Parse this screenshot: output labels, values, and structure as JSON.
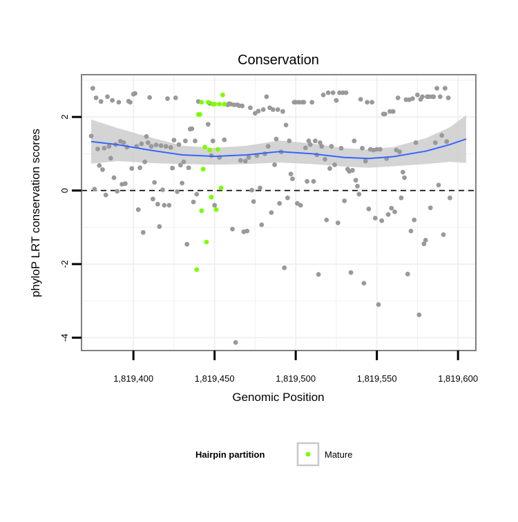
{
  "chart_data": {
    "type": "scatter",
    "title": "Conservation",
    "xlabel": "Genomic Position",
    "ylabel": "phyloP LRT conservation scores",
    "xlim": [
      1819368,
      1819611
    ],
    "ylim": [
      -4.35,
      3.15
    ],
    "x_ticks": [
      1819400,
      1819450,
      1819500,
      1819550,
      1819600
    ],
    "x_tick_labels": [
      "1,819,400",
      "1,819,450",
      "1,819,500",
      "1,819,550",
      "1,819,600"
    ],
    "y_ticks": [
      -4,
      -2,
      0,
      2
    ],
    "y_tick_labels": [
      "-4",
      "-2",
      "0",
      "2"
    ],
    "reference_line_y": 0,
    "grid": true,
    "legend": {
      "title": "Hairpin partition",
      "position": "bottom",
      "entries": [
        {
          "label": "Mature",
          "color": "#7cfc00"
        }
      ]
    },
    "series": [
      {
        "color": "#999999",
        "points": [
          [
            1819374,
            1.48
          ],
          [
            1819375,
            2.78
          ],
          [
            1819376,
            0.04
          ],
          [
            1819377,
            2.52
          ],
          [
            1819378,
            1.13
          ],
          [
            1819379,
            0.68
          ],
          [
            1819380,
            2.42
          ],
          [
            1819381,
            0.57
          ],
          [
            1819382,
            1.15
          ],
          [
            1819383,
            -0.12
          ],
          [
            1819384,
            2.55
          ],
          [
            1819385,
            1.2
          ],
          [
            1819386,
            0.88
          ],
          [
            1819387,
            2.45
          ],
          [
            1819388,
            0.35
          ],
          [
            1819389,
            1.25
          ],
          [
            1819390,
            -0.02
          ],
          [
            1819391,
            2.4
          ],
          [
            1819392,
            1.34
          ],
          [
            1819393,
            0.17
          ],
          [
            1819394,
            1.3
          ],
          [
            1819395,
            0.19
          ],
          [
            1819396,
            1.18
          ],
          [
            1819397,
            2.43
          ],
          [
            1819398,
            2.4
          ],
          [
            1819399,
            0.6
          ],
          [
            1819400,
            2.62
          ],
          [
            1819401,
            2.64
          ],
          [
            1819402,
            1.2
          ],
          [
            1819403,
            -0.52
          ],
          [
            1819404,
            0.62
          ],
          [
            1819405,
            1.27
          ],
          [
            1819406,
            -1.14
          ],
          [
            1819407,
            0.78
          ],
          [
            1819408,
            1.47
          ],
          [
            1819409,
            1.3
          ],
          [
            1819410,
            2.53
          ],
          [
            1819411,
            1.2
          ],
          [
            1819412,
            -0.23
          ],
          [
            1819413,
            0.22
          ],
          [
            1819414,
            1.24
          ],
          [
            1819415,
            -0.37
          ],
          [
            1819416,
            -0.98
          ],
          [
            1819417,
            1.22
          ],
          [
            1819418,
            0.02
          ],
          [
            1819419,
            -0.4
          ],
          [
            1819420,
            1.2
          ],
          [
            1819421,
            2.5
          ],
          [
            1819422,
            -0.4
          ],
          [
            1819423,
            1.17
          ],
          [
            1819424,
            0.61
          ],
          [
            1819425,
            1.37
          ],
          [
            1819426,
            2.52
          ],
          [
            1819427,
            -0.03
          ],
          [
            1819428,
            1.25
          ],
          [
            1819429,
            0.69
          ],
          [
            1819430,
            0.2
          ],
          [
            1819431,
            0.78
          ],
          [
            1819432,
            1.35
          ],
          [
            1819433,
            -1.46
          ],
          [
            1819434,
            0.62
          ],
          [
            1819435,
            1.67
          ],
          [
            1819436,
            1.68
          ],
          [
            1819437,
            -0.31
          ],
          [
            1819438,
            1.35
          ],
          [
            1819439,
            -0.1
          ],
          [
            1819440,
            2.42
          ],
          [
            1819446,
            1.8
          ],
          [
            1819447,
            2.37
          ],
          [
            1819448,
            0.95
          ],
          [
            1819449,
            1.35
          ],
          [
            1819450,
            -0.4
          ],
          [
            1819453,
            0.9
          ],
          [
            1819456,
            1.38
          ],
          [
            1819458,
            2.33
          ],
          [
            1819459,
            2.36
          ],
          [
            1819460,
            2.35
          ],
          [
            1819461,
            -1.05
          ],
          [
            1819462,
            2.33
          ],
          [
            1819463,
            -4.13
          ],
          [
            1819464,
            2.33
          ],
          [
            1819465,
            2.31
          ],
          [
            1819466,
            0.82
          ],
          [
            1819467,
            2.3
          ],
          [
            1819468,
            -1.12
          ],
          [
            1819469,
            0.8
          ],
          [
            1819470,
            -1.1
          ],
          [
            1819471,
            0.9
          ],
          [
            1819472,
            2.25
          ],
          [
            1819473,
            0.01
          ],
          [
            1819474,
            -0.3
          ],
          [
            1819475,
            2.1
          ],
          [
            1819476,
            0.95
          ],
          [
            1819477,
            2.16
          ],
          [
            1819478,
            0.07
          ],
          [
            1819479,
            -0.93
          ],
          [
            1819480,
            2.2
          ],
          [
            1819481,
            1.0
          ],
          [
            1819482,
            2.55
          ],
          [
            1819483,
            1.2
          ],
          [
            1819484,
            2.25
          ],
          [
            1819485,
            -0.6
          ],
          [
            1819486,
            2.2
          ],
          [
            1819487,
            0.7
          ],
          [
            1819488,
            1.4
          ],
          [
            1819489,
            2.2
          ],
          [
            1819490,
            -0.35
          ],
          [
            1819491,
            1.05
          ],
          [
            1819492,
            2.15
          ],
          [
            1819493,
            -2.1
          ],
          [
            1819494,
            1.78
          ],
          [
            1819495,
            -0.2
          ],
          [
            1819496,
            1.35
          ],
          [
            1819497,
            0.45
          ],
          [
            1819498,
            0.32
          ],
          [
            1819499,
            2.4
          ],
          [
            1819500,
            2.4
          ],
          [
            1819501,
            -0.35
          ],
          [
            1819502,
            2.4
          ],
          [
            1819503,
            -0.4
          ],
          [
            1819504,
            2.4
          ],
          [
            1819505,
            2.4
          ],
          [
            1819506,
            1.16
          ],
          [
            1819507,
            0.25
          ],
          [
            1819508,
            1.35
          ],
          [
            1819509,
            1.25
          ],
          [
            1819510,
            2.4
          ],
          [
            1819511,
            0.25
          ],
          [
            1819512,
            1.35
          ],
          [
            1819513,
            0.97
          ],
          [
            1819514,
            -2.28
          ],
          [
            1819515,
            1.3
          ],
          [
            1819516,
            1.2
          ],
          [
            1819517,
            2.6
          ],
          [
            1819518,
            0.85
          ],
          [
            1819519,
            -0.8
          ],
          [
            1819520,
            2.66
          ],
          [
            1819521,
            0.6
          ],
          [
            1819522,
            1.2
          ],
          [
            1819523,
            2.66
          ],
          [
            1819524,
            0.7
          ],
          [
            1819525,
            2.45
          ],
          [
            1819526,
            -0.88
          ],
          [
            1819527,
            2.66
          ],
          [
            1819528,
            1.15
          ],
          [
            1819529,
            2.66
          ],
          [
            1819530,
            -0.28
          ],
          [
            1819531,
            2.66
          ],
          [
            1819532,
            0.58
          ],
          [
            1819533,
            0.52
          ],
          [
            1819534,
            -2.23
          ],
          [
            1819535,
            0.55
          ],
          [
            1819536,
            1.35
          ],
          [
            1819537,
            0.28
          ],
          [
            1819538,
            0.12
          ],
          [
            1819539,
            -0.1
          ],
          [
            1819540,
            2.48
          ],
          [
            1819541,
            1.15
          ],
          [
            1819542,
            -2.52
          ],
          [
            1819543,
            0.8
          ],
          [
            1819544,
            2.4
          ],
          [
            1819545,
            -0.5
          ],
          [
            1819546,
            1.12
          ],
          [
            1819547,
            2.4
          ],
          [
            1819548,
            1.1
          ],
          [
            1819549,
            -0.75
          ],
          [
            1819550,
            1.12
          ],
          [
            1819551,
            -3.1
          ],
          [
            1819552,
            1.12
          ],
          [
            1819553,
            -0.82
          ],
          [
            1819554,
            2.08
          ],
          [
            1819555,
            2.08
          ],
          [
            1819556,
            0.87
          ],
          [
            1819557,
            -0.65
          ],
          [
            1819558,
            2.15
          ],
          [
            1819559,
            -0.48
          ],
          [
            1819560,
            2.15
          ],
          [
            1819561,
            -0.58
          ],
          [
            1819562,
            1.1
          ],
          [
            1819563,
            2.52
          ],
          [
            1819564,
            1.05
          ],
          [
            1819565,
            -0.2
          ],
          [
            1819566,
            0.5
          ],
          [
            1819567,
            0.35
          ],
          [
            1819568,
            2.47
          ],
          [
            1819569,
            -2.27
          ],
          [
            1819570,
            2.47
          ],
          [
            1819571,
            -1.1
          ],
          [
            1819572,
            2.5
          ],
          [
            1819573,
            -0.8
          ],
          [
            1819574,
            1.3
          ],
          [
            1819575,
            2.6
          ],
          [
            1819576,
            -3.38
          ],
          [
            1819577,
            2.48
          ],
          [
            1819578,
            2.55
          ],
          [
            1819579,
            -1.45
          ],
          [
            1819580,
            -1.35
          ],
          [
            1819581,
            2.55
          ],
          [
            1819582,
            2.55
          ],
          [
            1819583,
            -0.47
          ],
          [
            1819584,
            2.55
          ],
          [
            1819585,
            2.55
          ],
          [
            1819586,
            1.3
          ],
          [
            1819587,
            2.78
          ],
          [
            1819588,
            0.15
          ],
          [
            1819589,
            2.55
          ],
          [
            1819590,
            1.5
          ],
          [
            1819591,
            -1.2
          ],
          [
            1819592,
            2.78
          ],
          [
            1819593,
            1.33
          ],
          [
            1819594,
            2.52
          ],
          [
            1819595,
            -0.2
          ]
        ]
      },
      {
        "name": "Mature",
        "color": "#7cfc00",
        "points": [
          [
            1819439,
            -2.15
          ],
          [
            1819440,
            2.07
          ],
          [
            1819441,
            2.07
          ],
          [
            1819442,
            2.4
          ],
          [
            1819443,
            0.58
          ],
          [
            1819444,
            1.18
          ],
          [
            1819445,
            -1.4
          ],
          [
            1819446,
            2.4
          ],
          [
            1819447,
            1.1
          ],
          [
            1819448,
            -0.18
          ],
          [
            1819449,
            2.35
          ],
          [
            1819450,
            2.35
          ],
          [
            1819451,
            -0.52
          ],
          [
            1819452,
            1.12
          ],
          [
            1819453,
            2.35
          ],
          [
            1819454,
            0.07
          ],
          [
            1819455,
            2.6
          ],
          [
            1819456,
            2.35
          ],
          [
            1819442,
            -0.55
          ]
        ]
      }
    ],
    "smooth": {
      "method": "loess",
      "color": "#3366ff",
      "band_color": "#cccccc",
      "x": [
        1819374,
        1819390,
        1819410,
        1819430,
        1819450,
        1819470,
        1819490,
        1819510,
        1819530,
        1819545,
        1819560,
        1819580,
        1819595,
        1819605
      ],
      "y": [
        1.33,
        1.25,
        1.1,
        0.97,
        0.93,
        0.97,
        1.06,
        1.0,
        0.9,
        0.87,
        0.92,
        1.07,
        1.25,
        1.4
      ],
      "lower": [
        0.73,
        0.8,
        0.75,
        0.72,
        0.7,
        0.72,
        0.76,
        0.72,
        0.65,
        0.62,
        0.66,
        0.72,
        0.78,
        0.75
      ],
      "upper": [
        1.93,
        1.7,
        1.45,
        1.22,
        1.16,
        1.22,
        1.36,
        1.28,
        1.15,
        1.12,
        1.18,
        1.42,
        1.72,
        2.05
      ]
    }
  }
}
